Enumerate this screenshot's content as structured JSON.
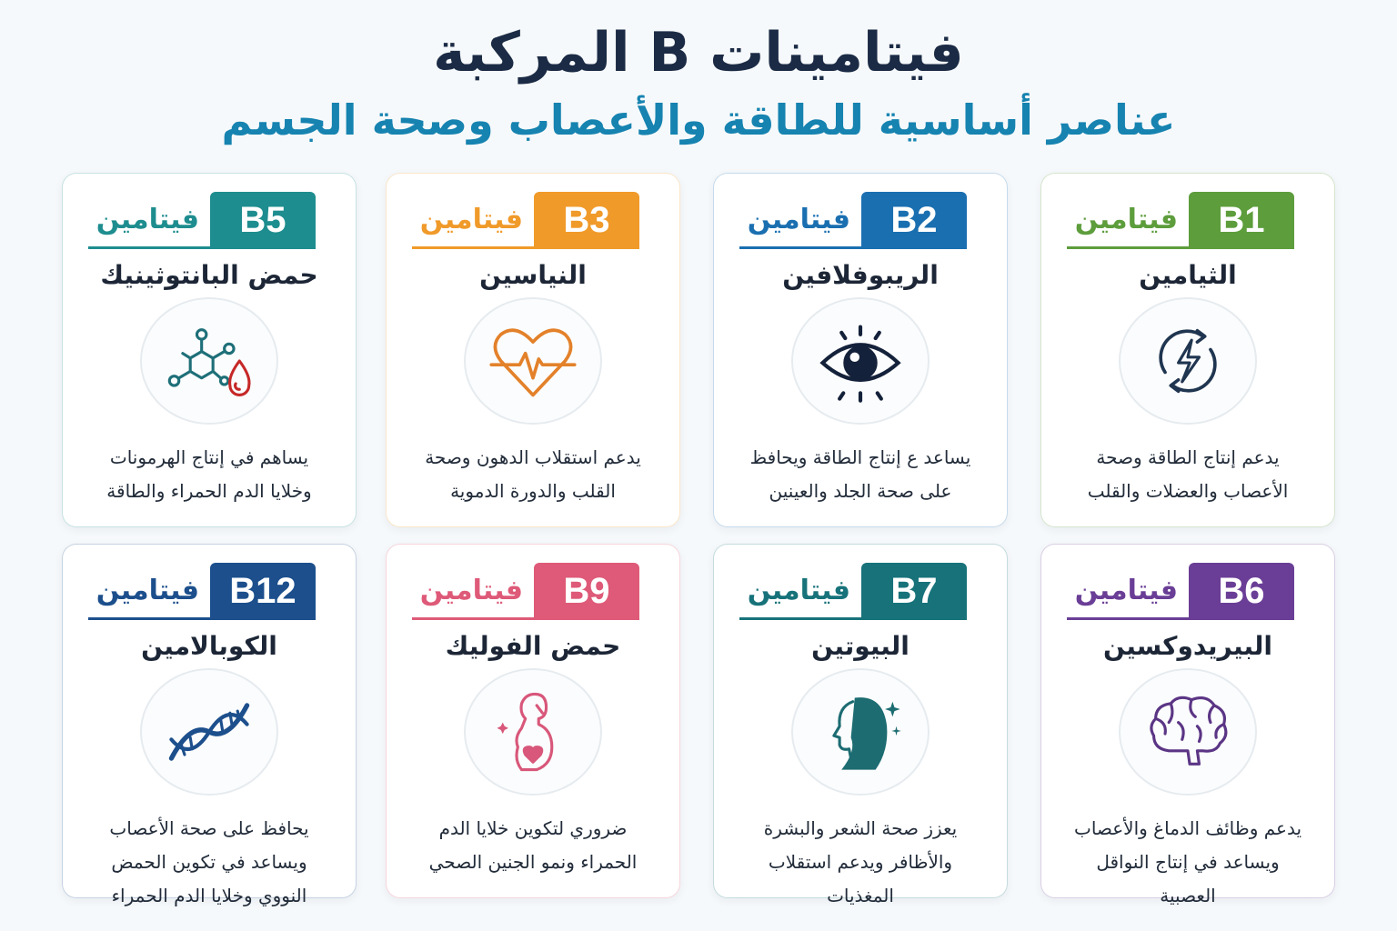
{
  "header": {
    "title": "فيتامينات B المركبة",
    "subtitle": "عناصر أساسية للطاقة والأعصاب وصحة الجسم"
  },
  "vitamin_word": "فيتامين",
  "cards": [
    {
      "code": "B1",
      "name": "الثيامين",
      "color": "#5d9d3c",
      "icon": "energy-cycle-icon",
      "desc": [
        "يدعم إنتاج الطاقة وصحة",
        "الأعصاب والعضلات والقلب"
      ]
    },
    {
      "code": "B2",
      "name": "الريبوفلافين",
      "color": "#1a6fb0",
      "icon": "eye-icon",
      "desc": [
        "يساعد ع إنتاج الطاقة ويحافظ",
        "على صحة الجلد والعينين"
      ]
    },
    {
      "code": "B3",
      "name": "النياسين",
      "color": "#f09a2a",
      "icon": "heart-pulse-icon",
      "desc": [
        "يدعم استقلاب الدهون وصحة",
        "القلب والدورة الدموية"
      ]
    },
    {
      "code": "B5",
      "name": "حمض البانتوثينيك",
      "color": "#1e8d8f",
      "icon": "molecule-drop-icon",
      "desc": [
        "يساهم في إنتاج الهرمونات",
        "وخلايا الدم الحمراء والطاقة"
      ]
    },
    {
      "code": "B6",
      "name": "البيريدوكسين",
      "color": "#6a3e96",
      "icon": "brain-icon",
      "desc": [
        "يدعم وظائف الدماغ والأعصاب",
        "ويساعد في إنتاج النواقل",
        "العصبية"
      ]
    },
    {
      "code": "B7",
      "name": "البيوتين",
      "color": "#17727a",
      "icon": "woman-hair-icon",
      "desc": [
        "يعزز صحة الشعر والبشرة",
        "والأظافر ويدعم استقلاب",
        "المغذيات"
      ]
    },
    {
      "code": "B9",
      "name": "حمض الفوليك",
      "color": "#de5a78",
      "icon": "pregnant-woman-icon",
      "desc": [
        "ضروري لتكوين خلايا الدم",
        "الحمراء ونمو الجنين الصحي"
      ]
    },
    {
      "code": "B12",
      "name": "الكوبالامين",
      "color": "#1c4f8c",
      "icon": "dna-icon",
      "desc": [
        "يحافظ على صحة الأعصاب",
        "ويساعد في تكوين الحمض",
        "النووي وخلايا الدم الحمراء"
      ]
    }
  ]
}
